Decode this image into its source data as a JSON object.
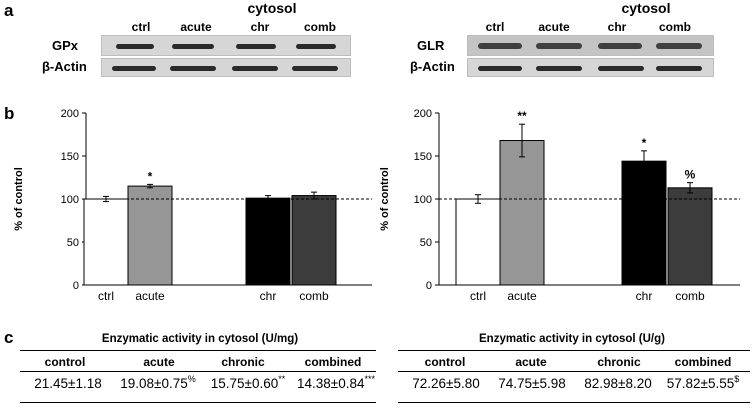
{
  "panel_a": {
    "letter": "a",
    "left_blot": {
      "title": "cytosol",
      "lanes": [
        "ctrl",
        "acute",
        "chr",
        "comb"
      ],
      "row1": "GPx",
      "row2": "β-Actin"
    },
    "right_blot": {
      "title": "cytosol",
      "lanes": [
        "ctrl",
        "acute",
        "chr",
        "comb"
      ],
      "row1": "GLR",
      "row2": "β-Actin"
    }
  },
  "panel_b": {
    "letter": "b"
  },
  "chart_data": [
    {
      "type": "bar",
      "title": "",
      "xlabel": "",
      "ylabel": "% of control",
      "ylim": [
        0,
        200
      ],
      "yticks": [
        "0",
        "50",
        "100",
        "150",
        "200"
      ],
      "reference_line": 100,
      "categories": [
        "ctrl",
        "acute",
        "chr",
        "comb"
      ],
      "values": [
        100,
        115,
        101,
        104
      ],
      "errors": [
        3,
        2,
        3,
        4
      ],
      "significance": [
        "",
        "*",
        "",
        ""
      ],
      "colors": [
        "#ffffff",
        "#969696",
        "#000000",
        "#3c3c3c"
      ],
      "grid": false
    },
    {
      "type": "bar",
      "title": "",
      "xlabel": "",
      "ylabel": "% of control",
      "ylim": [
        0,
        200
      ],
      "yticks": [
        "0",
        "50",
        "100",
        "150",
        "200"
      ],
      "reference_line": 100,
      "categories": [
        "ctrl",
        "acute",
        "chr",
        "comb"
      ],
      "values": [
        100,
        168,
        144,
        113
      ],
      "errors": [
        5,
        19,
        12,
        6
      ],
      "significance": [
        "",
        "**",
        "*",
        "%"
      ],
      "colors": [
        "#ffffff",
        "#969696",
        "#000000",
        "#3c3c3c"
      ],
      "grid": false
    }
  ],
  "panel_c": {
    "letter": "c",
    "left_table": {
      "title": "Enzymatic activity in cytosol (U/mg)",
      "headers": [
        "control",
        "acute",
        "chronic",
        "combined"
      ],
      "values": [
        "21.45±1.18",
        "19.08±0.75",
        "15.75±0.60",
        "14.38±0.84"
      ],
      "marks": [
        "",
        "%",
        "**",
        "***"
      ]
    },
    "right_table": {
      "title": "Enzymatic activity in cytosol (U/g)",
      "headers": [
        "control",
        "acute",
        "chronic",
        "combined"
      ],
      "values": [
        "72.26±5.80",
        "74.75±5.98",
        "82.98±8.20",
        "57.82±5.55"
      ],
      "marks": [
        "",
        "",
        "",
        "$"
      ]
    }
  }
}
